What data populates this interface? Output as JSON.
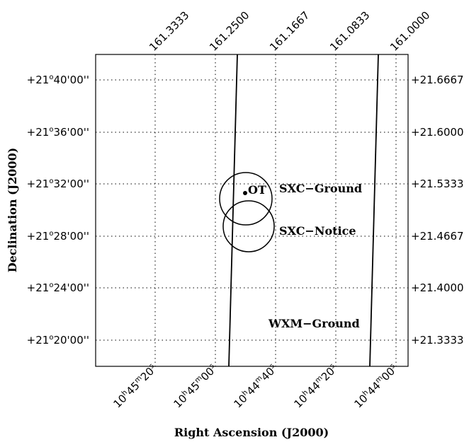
{
  "axes": {
    "xlabel": "Right Ascension (J2000)",
    "ylabel": "Declination (J2000)"
  },
  "ra_sexagesimal_ticks": [
    {
      "h": "10",
      "m": "45",
      "s": "20",
      "ra_deg": 161.3333
    },
    {
      "h": "10",
      "m": "45",
      "s": "00",
      "ra_deg": 161.25
    },
    {
      "h": "10",
      "m": "44",
      "s": "40",
      "ra_deg": 161.1667
    },
    {
      "h": "10",
      "m": "44",
      "s": "20",
      "ra_deg": 161.0833
    },
    {
      "h": "10",
      "m": "44",
      "s": "00",
      "ra_deg": 161.0
    }
  ],
  "ra_degree_ticks": [
    "161.3333",
    "161.2500",
    "161.1667",
    "161.0833",
    "161.0000"
  ],
  "dec_sexagesimal_ticks": [
    {
      "label": "+21°40'00''",
      "deg": "+21",
      "rest": "40'00''",
      "dec_deg": 21.6667
    },
    {
      "label": "+21°36'00''",
      "deg": "+21",
      "rest": "36'00''",
      "dec_deg": 21.6
    },
    {
      "label": "+21°32'00''",
      "deg": "+21",
      "rest": "32'00''",
      "dec_deg": 21.5333
    },
    {
      "label": "+21°28'00''",
      "deg": "+21",
      "rest": "28'00''",
      "dec_deg": 21.4667
    },
    {
      "label": "+21°24'00''",
      "deg": "+21",
      "rest": "24'00''",
      "dec_deg": 21.4
    },
    {
      "label": "+21°20'00''",
      "deg": "+21",
      "rest": "20'00''",
      "dec_deg": 21.3333
    }
  ],
  "dec_degree_ticks": [
    "+21.6667",
    "+21.6000",
    "+21.5333",
    "+21.4667",
    "+21.4000",
    "+21.3333"
  ],
  "regions": {
    "wxm_label": "WXM−Ground",
    "sxc_ground_label": "SXC−Ground",
    "sxc_notice_label": "SXC−Notice",
    "ot_label": "OT"
  }
}
